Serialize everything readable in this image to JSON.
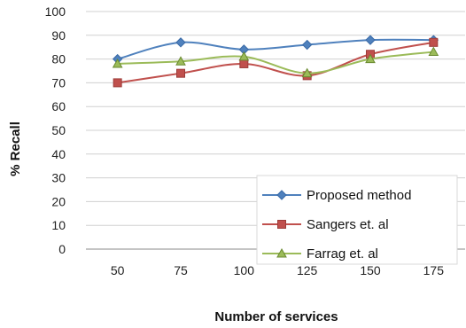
{
  "chart_data": {
    "type": "line",
    "title": "",
    "xlabel": "Number of services",
    "ylabel": "% Recall",
    "categories": [
      50,
      75,
      100,
      125,
      150,
      175
    ],
    "ylim": [
      0,
      100
    ],
    "yticks": [
      0,
      10,
      20,
      30,
      40,
      50,
      60,
      70,
      80,
      90,
      100
    ],
    "grid": "horizontal",
    "legend": "bottom-right",
    "series": [
      {
        "name": "Proposed method",
        "values": [
          80,
          87,
          84,
          86,
          88,
          88
        ],
        "color": "#4f81bd",
        "stroke": "#3a6aa6",
        "marker": "diamond"
      },
      {
        "name": "Sangers et. al",
        "values": [
          70,
          74,
          78,
          73,
          82,
          87
        ],
        "color": "#c0504d",
        "stroke": "#9c3c39",
        "marker": "square"
      },
      {
        "name": "Farrag et. al",
        "values": [
          78,
          79,
          81,
          74,
          80,
          83
        ],
        "color": "#9bbb59",
        "stroke": "#6a8a30",
        "marker": "triangle"
      }
    ]
  }
}
